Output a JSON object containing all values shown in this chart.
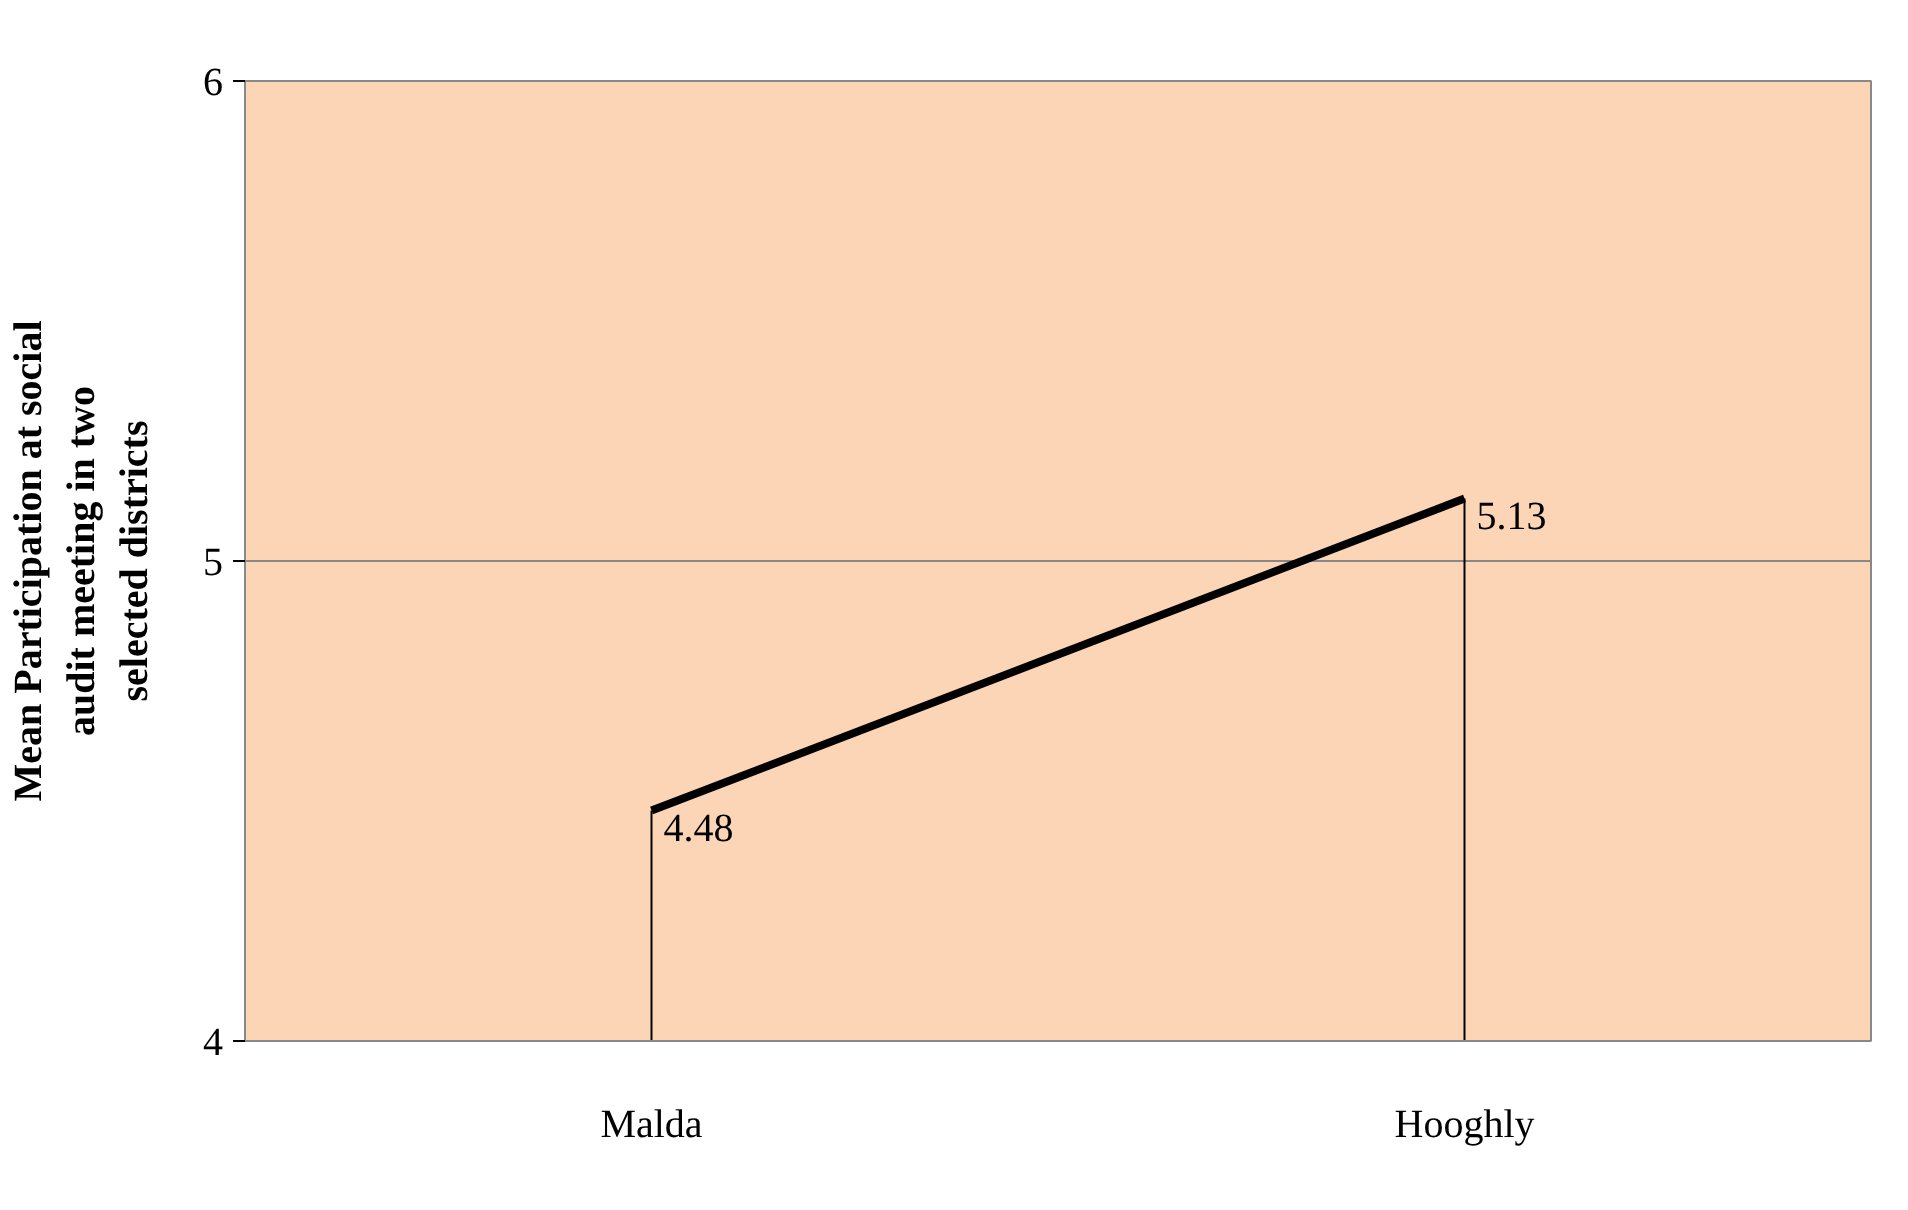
{
  "chart_data": {
    "type": "line",
    "categories": [
      "Malda",
      "Hooghly"
    ],
    "series": [
      {
        "color": "#000000",
        "values": [
          4.48,
          5.13
        ]
      }
    ],
    "ylabel": "Mean Participation at social audit meeting in two selected districts",
    "ylim": [
      4,
      6
    ],
    "yticks": [
      4,
      5,
      6
    ],
    "grid": "y",
    "data_labels": true,
    "marker": "none"
  }
}
